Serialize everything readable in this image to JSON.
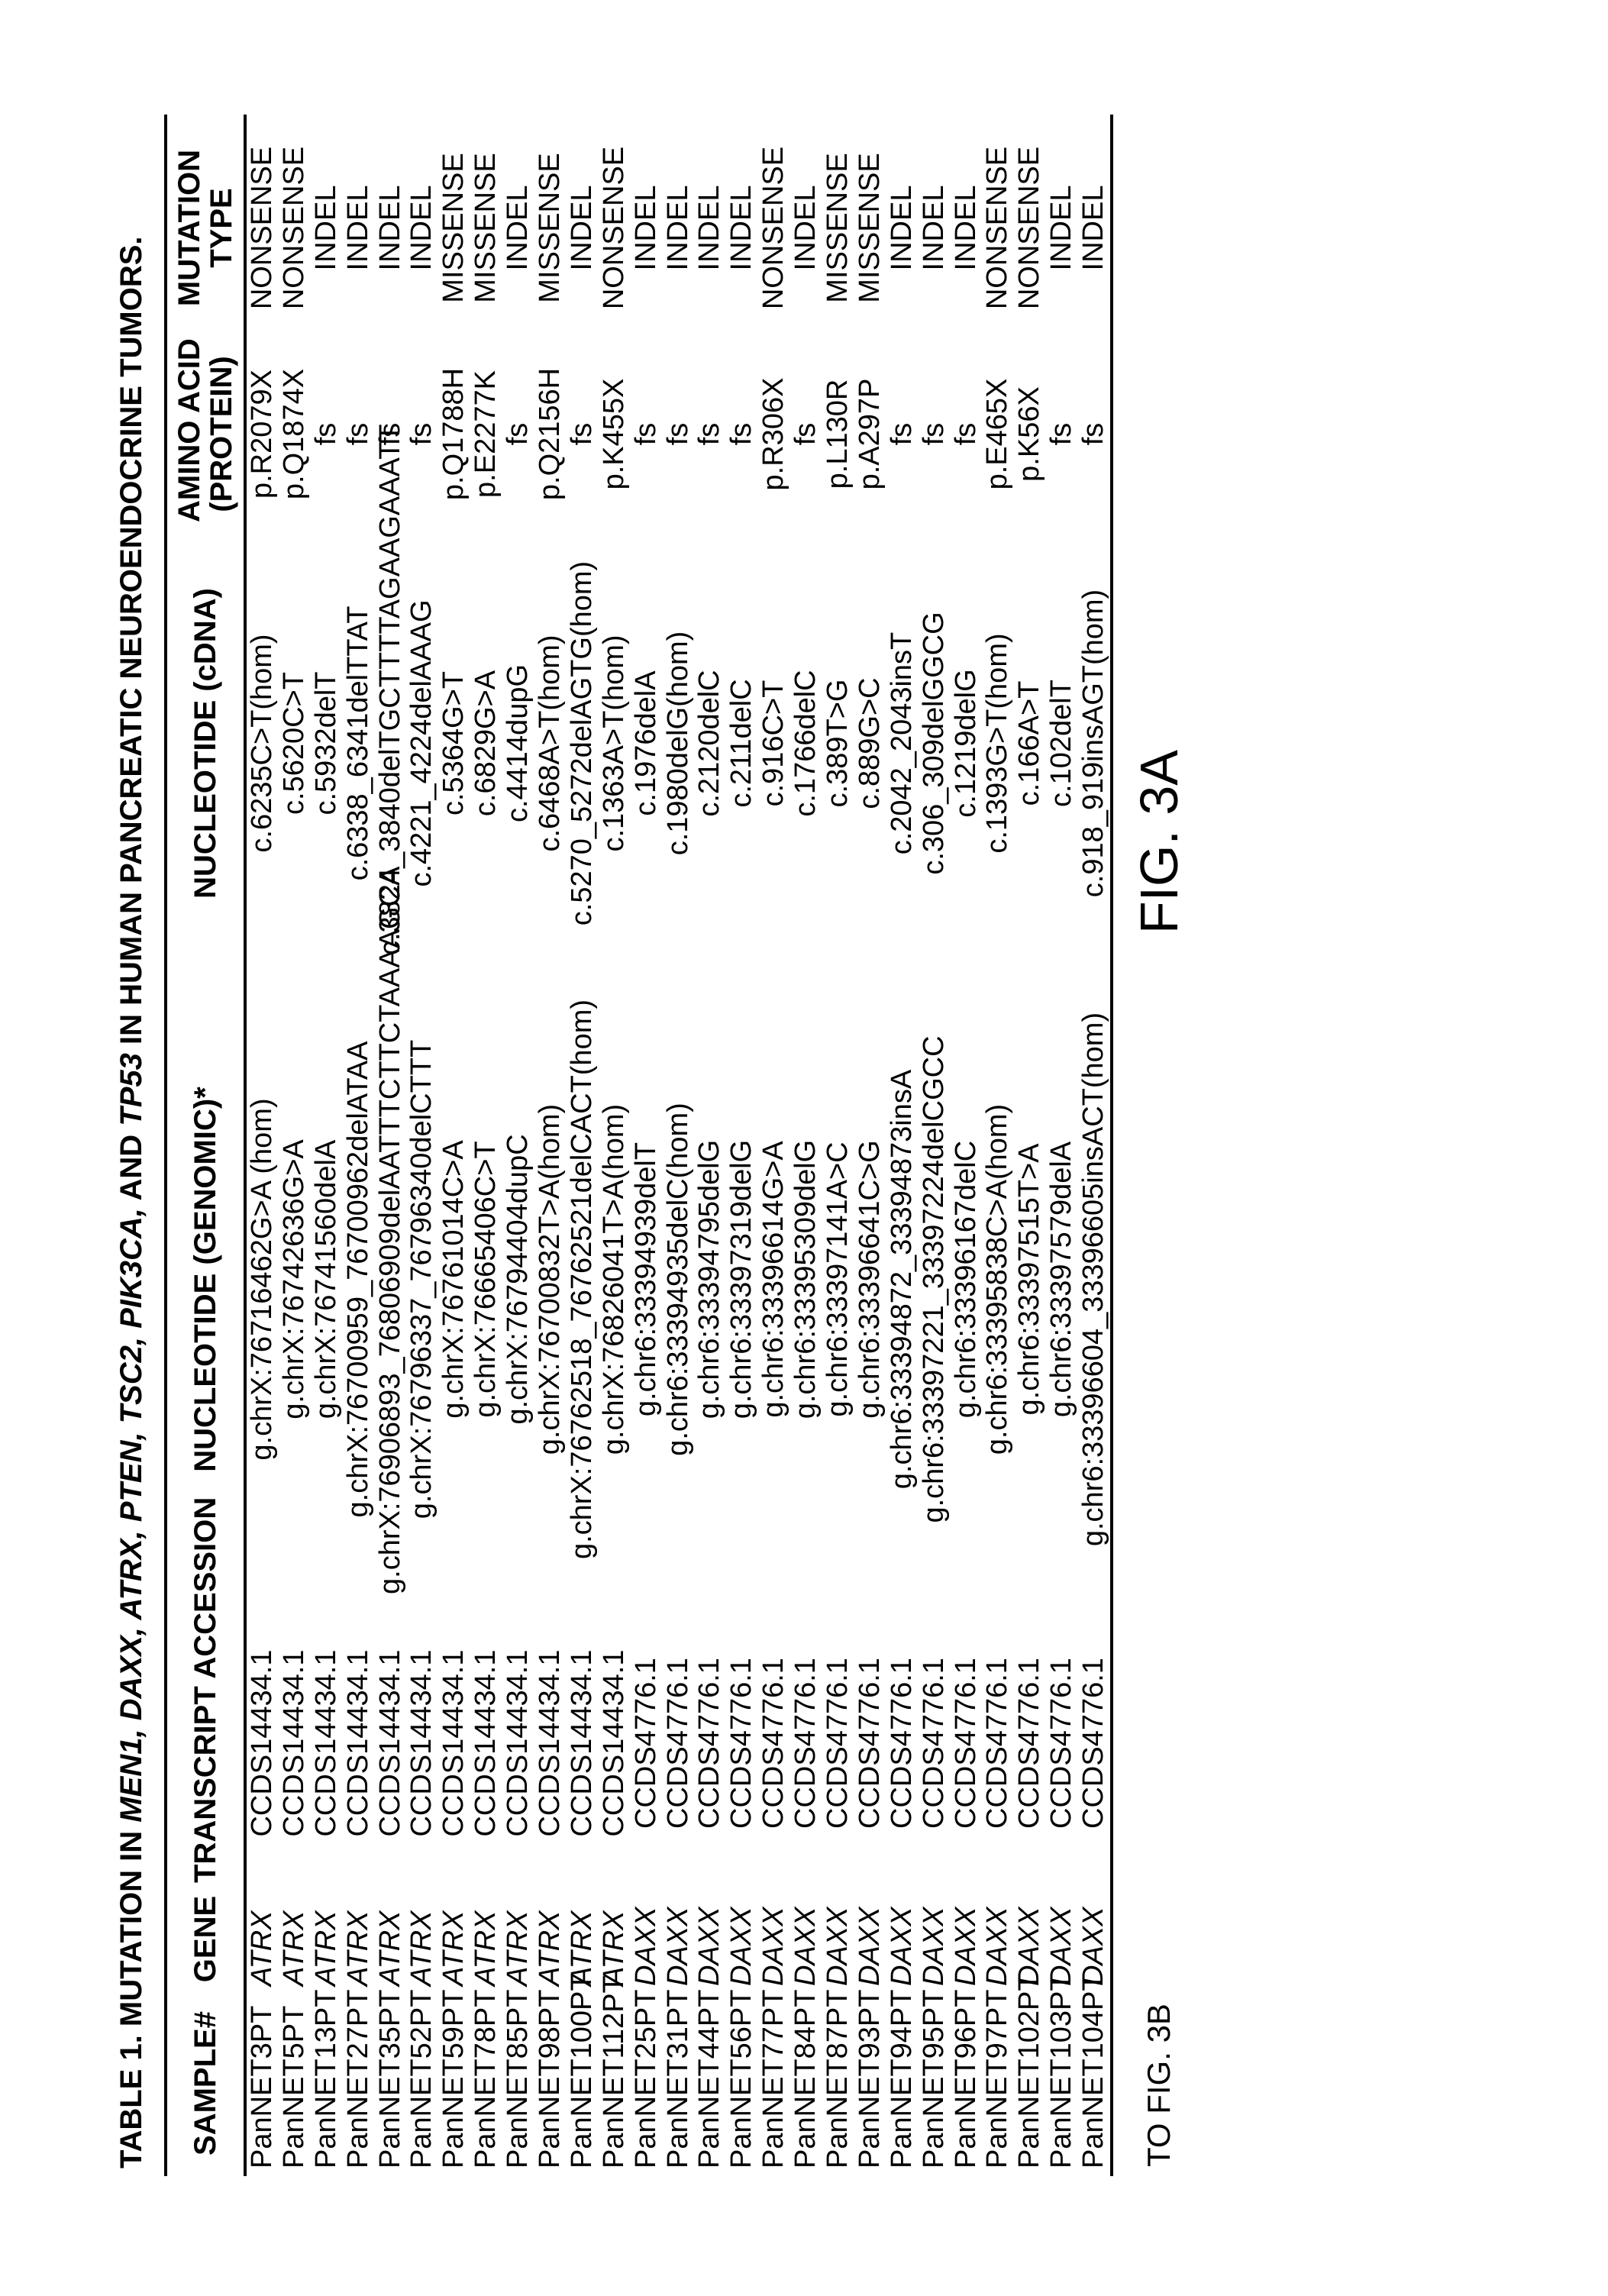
{
  "title_prefix": "TABLE 1. MUTATION IN ",
  "title_genes": "MEN1, DAXX, ATRX, PTEN, TSC2, PIK3CA,",
  "title_and": " AND ",
  "title_tp53": "TP53",
  "title_suffix": " IN HUMAN PANCREATIC NEUROENDOCRINE TUMORS.",
  "headers": {
    "sample": "SAMPLE#",
    "gene": "GENE",
    "accession": "TRANSCRIPT ACCESSION",
    "genomic": "NUCLEOTIDE (GENOMIC)*",
    "cdna": "NUCLEOTIDE (cDNA)",
    "amino1": "AMINO ACID",
    "amino2": "(PROTEIN)",
    "mut1": "MUTATION",
    "mut2": "TYPE"
  },
  "footer": {
    "to_fig": "TO FIG. 3B",
    "fig": "FIG. 3A"
  },
  "rows": [
    {
      "sample": "PanNET3PT",
      "gene": "ATRX",
      "acc": "CCDS14434.1",
      "gen": "g.chrX:76716462G>A (hom)",
      "cdna": "c.6235C>T(hom)",
      "prot": "p.R2079X",
      "mut": "NONSENSE"
    },
    {
      "sample": "PanNET5PT",
      "gene": "ATRX",
      "acc": "CCDS14434.1",
      "gen": "g.chrX:76742636G>A",
      "cdna": "c.5620C>T",
      "prot": "p.Q1874X",
      "mut": "NONSENSE"
    },
    {
      "sample": "PanNET13PT",
      "gene": "ATRX",
      "acc": "CCDS14434.1",
      "gen": "g.chrX:76741560delA",
      "cdna": "c.5932delT",
      "prot": "fs",
      "mut": "INDEL"
    },
    {
      "sample": "PanNET27PT",
      "gene": "ATRX",
      "acc": "CCDS14434.1",
      "gen": "g.chrX:76700959_76700962delATAA",
      "cdna": "c.6338_6341delTTAT",
      "prot": "fs",
      "mut": "INDEL"
    },
    {
      "sample": "PanNET35PT",
      "gene": "ATRX",
      "acc": "CCDS14434.1",
      "gen": "g.chrX:76906893_76806909delAATTTCTTCTAAAAGCA",
      "cdna": "c.3824_3840delTGCTTTTAGAAGAAATT",
      "prot": "fs",
      "mut": "INDEL"
    },
    {
      "sample": "PanNET52PT",
      "gene": "ATRX",
      "acc": "CCDS14434.1",
      "gen": "g.chrX:76796337_76796340delCTTT",
      "cdna": "c.4221_4224delAAAG",
      "prot": "fs",
      "mut": "INDEL"
    },
    {
      "sample": "PanNET59PT",
      "gene": "ATRX",
      "acc": "CCDS14434.1",
      "gen": "g.chrX:76761014C>A",
      "cdna": "c.5364G>T",
      "prot": "p.Q1788H",
      "mut": "MISSENSE"
    },
    {
      "sample": "PanNET78PT",
      "gene": "ATRX",
      "acc": "CCDS14434.1",
      "gen": "g.chrX:76665406C>T",
      "cdna": "c.6829G>A",
      "prot": "p.E2277K",
      "mut": "MISSENSE"
    },
    {
      "sample": "PanNET85PT",
      "gene": "ATRX",
      "acc": "CCDS14434.1",
      "gen": "g.chrX:76794404dupC",
      "cdna": "c.4414dupG",
      "prot": "fs",
      "mut": "INDEL"
    },
    {
      "sample": "PanNET98PT",
      "gene": "ATRX",
      "acc": "CCDS14434.1",
      "gen": "g.chrX:76700832T>A(hom)",
      "cdna": "c.6468A>T(hom)",
      "prot": "p.Q2156H",
      "mut": "MISSENSE"
    },
    {
      "sample": "PanNET100PT",
      "gene": "ATRX",
      "acc": "CCDS14434.1",
      "gen": "g.chrX:76762518_76762521delCACT(hom)",
      "cdna": "c.5270_5272delAGTG(hom)",
      "prot": "fs",
      "mut": "INDEL"
    },
    {
      "sample": "PanNET112PT",
      "gene": "ATRX",
      "acc": "CCDS14434.1",
      "gen": "g.chrX:76826041T>A(hom)",
      "cdna": "c.1363A>T(hom)",
      "prot": "p.K455X",
      "mut": "NONSENSE"
    },
    {
      "sample": "PanNET25PT",
      "gene": "DAXX",
      "acc": "CCDS4776.1",
      "gen": "g.chr6:33394939delT",
      "cdna": "c.1976delA",
      "prot": "fs",
      "mut": "INDEL"
    },
    {
      "sample": "PanNET31PT",
      "gene": "DAXX",
      "acc": "CCDS4776.1",
      "gen": "g.chr6:33394935delC(hom)",
      "cdna": "c.1980delG(hom)",
      "prot": "fs",
      "mut": "INDEL"
    },
    {
      "sample": "PanNET44PT",
      "gene": "DAXX",
      "acc": "CCDS4776.1",
      "gen": "g.chr6:33394795delG",
      "cdna": "c.2120delC",
      "prot": "fs",
      "mut": "INDEL"
    },
    {
      "sample": "PanNET56PT",
      "gene": "DAXX",
      "acc": "CCDS4776.1",
      "gen": "g.chr6:33397319delG",
      "cdna": "c.211delC",
      "prot": "fs",
      "mut": "INDEL"
    },
    {
      "sample": "PanNET77PT",
      "gene": "DAXX",
      "acc": "CCDS4776.1",
      "gen": "g.chr6:33396614G>A",
      "cdna": "c.916C>T",
      "prot": "p.R306X",
      "mut": "NONSENSE"
    },
    {
      "sample": "PanNET84PT",
      "gene": "DAXX",
      "acc": "CCDS4776.1",
      "gen": "g.chr6:33395309delG",
      "cdna": "c.1766delC",
      "prot": "fs",
      "mut": "INDEL"
    },
    {
      "sample": "PanNET87PT",
      "gene": "DAXX",
      "acc": "CCDS4776.1",
      "gen": "g.chr6:33397141A>C",
      "cdna": "c.389T>G",
      "prot": "p.L130R",
      "mut": "MISSENSE"
    },
    {
      "sample": "PanNET93PT",
      "gene": "DAXX",
      "acc": "CCDS4776.1",
      "gen": "g.chr6:33396641C>G",
      "cdna": "c.889G>C",
      "prot": "p.A297P",
      "mut": "MISSENSE"
    },
    {
      "sample": "PanNET94PT",
      "gene": "DAXX",
      "acc": "CCDS4776.1",
      "gen": "g.chr6:33394872_33394873insA",
      "cdna": "c.2042_2043insT",
      "prot": "fs",
      "mut": "INDEL"
    },
    {
      "sample": "PanNET95PT",
      "gene": "DAXX",
      "acc": "CCDS4776.1",
      "gen": "g.chr6:33397221_33397224delCGCC",
      "cdna": "c.306_309delGGCG",
      "prot": "fs",
      "mut": "INDEL"
    },
    {
      "sample": "PanNET96PT",
      "gene": "DAXX",
      "acc": "CCDS4776.1",
      "gen": "g.chr6:33396167delC",
      "cdna": "c.1219delG",
      "prot": "fs",
      "mut": "INDEL"
    },
    {
      "sample": "PanNET97PT",
      "gene": "DAXX",
      "acc": "CCDS4776.1",
      "gen": "g.chr6:33395838C>A(hom)",
      "cdna": "c.1393G>T(hom)",
      "prot": "p.E465X",
      "mut": "NONSENSE"
    },
    {
      "sample": "PanNET102PT",
      "gene": "DAXX",
      "acc": "CCDS4776.1",
      "gen": "g.chr6:33397515T>A",
      "cdna": "c.166A>T",
      "prot": "p.K56X",
      "mut": "NONSENSE"
    },
    {
      "sample": "PanNET103PT",
      "gene": "DAXX",
      "acc": "CCDS4776.1",
      "gen": "g.chr6:33397579delA",
      "cdna": "c.102delT",
      "prot": "fs",
      "mut": "INDEL"
    },
    {
      "sample": "PanNET104PT",
      "gene": "DAXX",
      "acc": "CCDS4776.1",
      "gen": "g.chr6:33396604_33396605insACT(hom)",
      "cdna": "c.918_919insAGT(hom)",
      "prot": "fs",
      "mut": "INDEL"
    }
  ]
}
